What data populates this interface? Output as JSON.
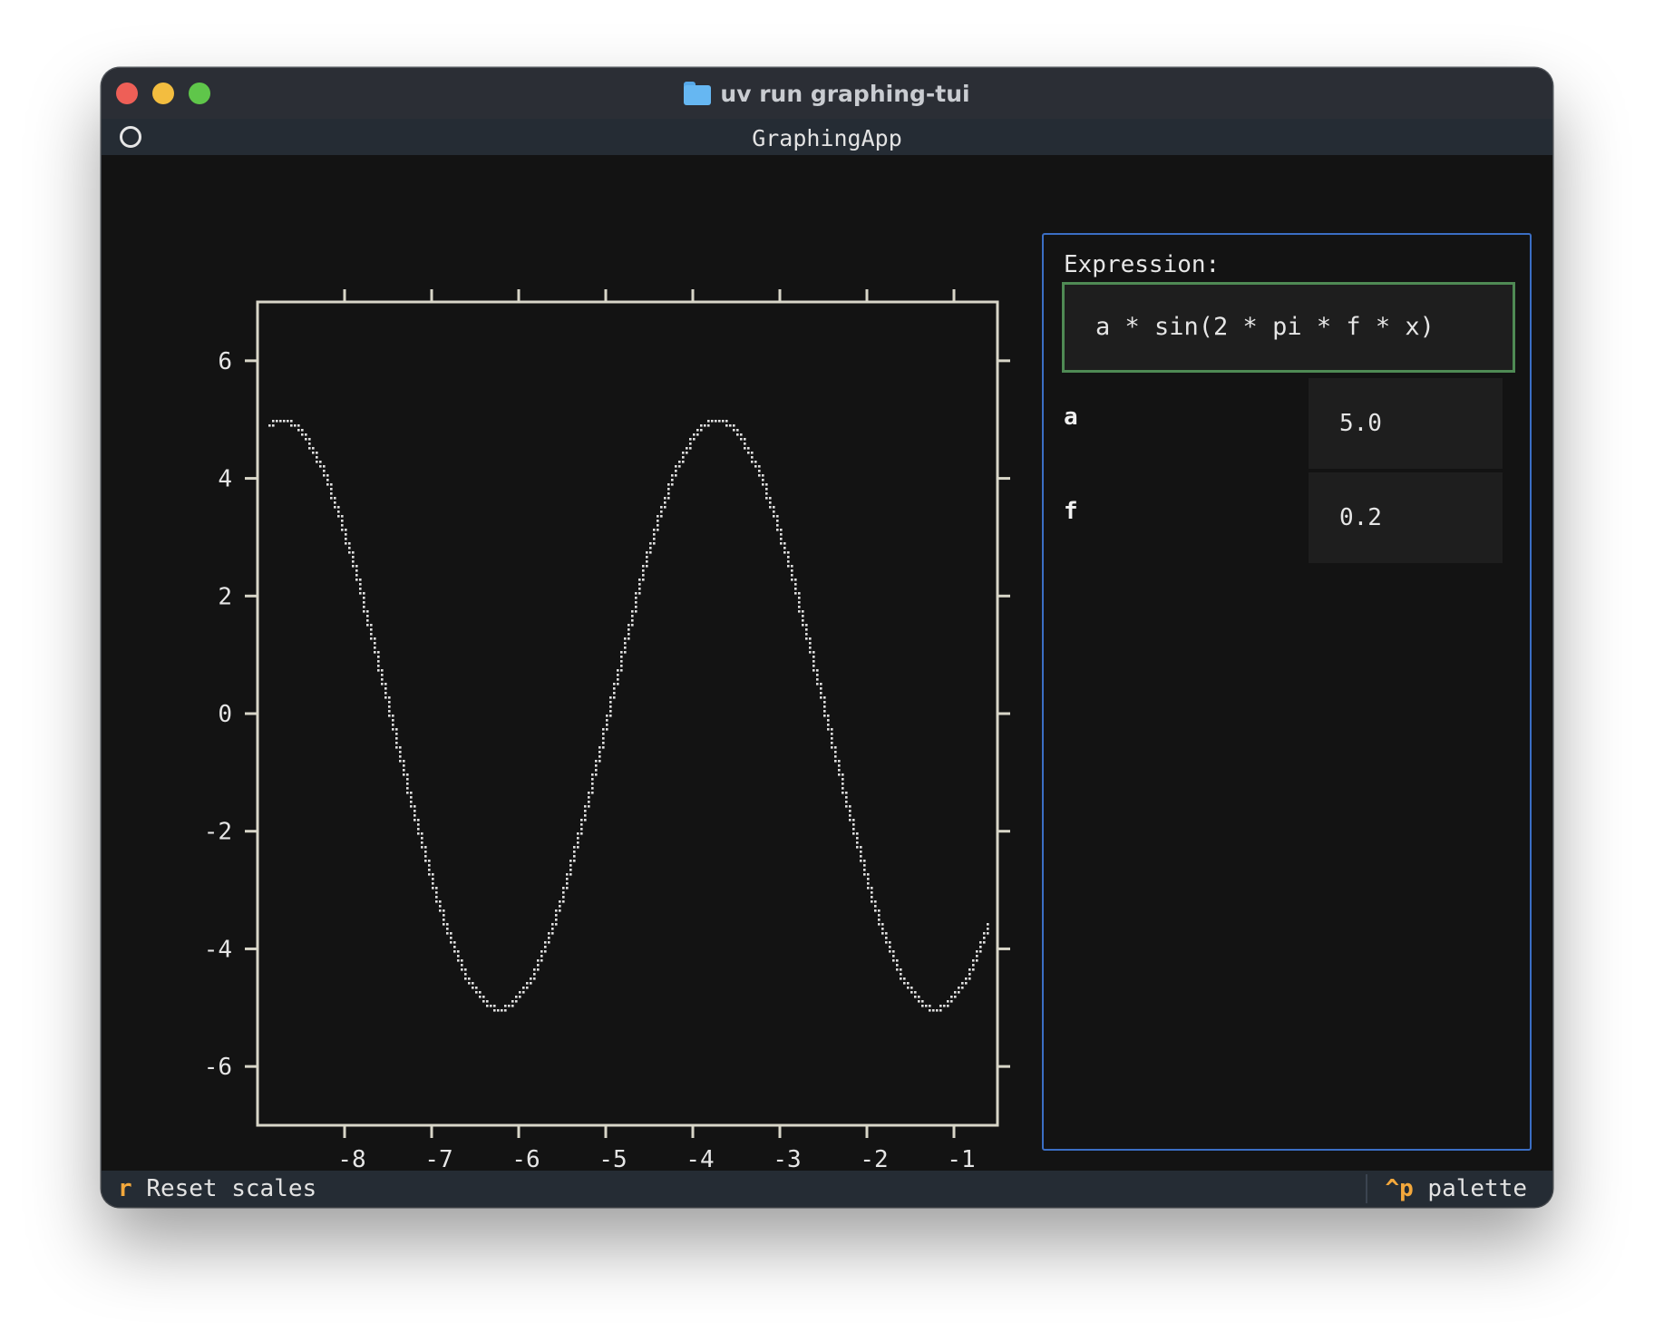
{
  "window": {
    "title": "uv run graphing-tui"
  },
  "app": {
    "title": "GraphingApp"
  },
  "panel": {
    "expression_label": "Expression:",
    "expression_value": "a * sin(2 * pi * f * x)",
    "params": [
      {
        "name": "a",
        "value": "5.0"
      },
      {
        "name": "f",
        "value": "0.2"
      }
    ]
  },
  "footer": {
    "reset_key": "r",
    "reset_label": "Reset scales",
    "palette_key": "^p",
    "palette_label": "palette"
  },
  "colors": {
    "axis": "#d8d6c8",
    "curve": "#e0e0e0",
    "panel_border": "#3b6ec4",
    "input_focus_border": "#4f8a54",
    "key_accent": "#f3a83c"
  },
  "chart_data": {
    "type": "line",
    "series": [
      {
        "expression": "a * sin(2 * pi * f * x)",
        "a": 5.0,
        "f": 0.2
      }
    ],
    "xlim": [
      -9.0,
      -0.5
    ],
    "ylim": [
      -7.0,
      7.0
    ],
    "xticks": [
      -8,
      -7,
      -6,
      -5,
      -4,
      -3,
      -2,
      -1
    ],
    "xtick_labels": [
      "-8",
      "-7",
      "-6",
      "-5",
      "-4",
      "-3",
      "-2",
      "-1"
    ],
    "yticks": [
      6,
      4,
      2,
      0,
      -2,
      -4,
      -6
    ],
    "ytick_labels": [
      "6",
      "4",
      "2",
      "0",
      "-2",
      "-4",
      "-6"
    ],
    "grid": false,
    "xlabel": "",
    "ylabel": ""
  }
}
